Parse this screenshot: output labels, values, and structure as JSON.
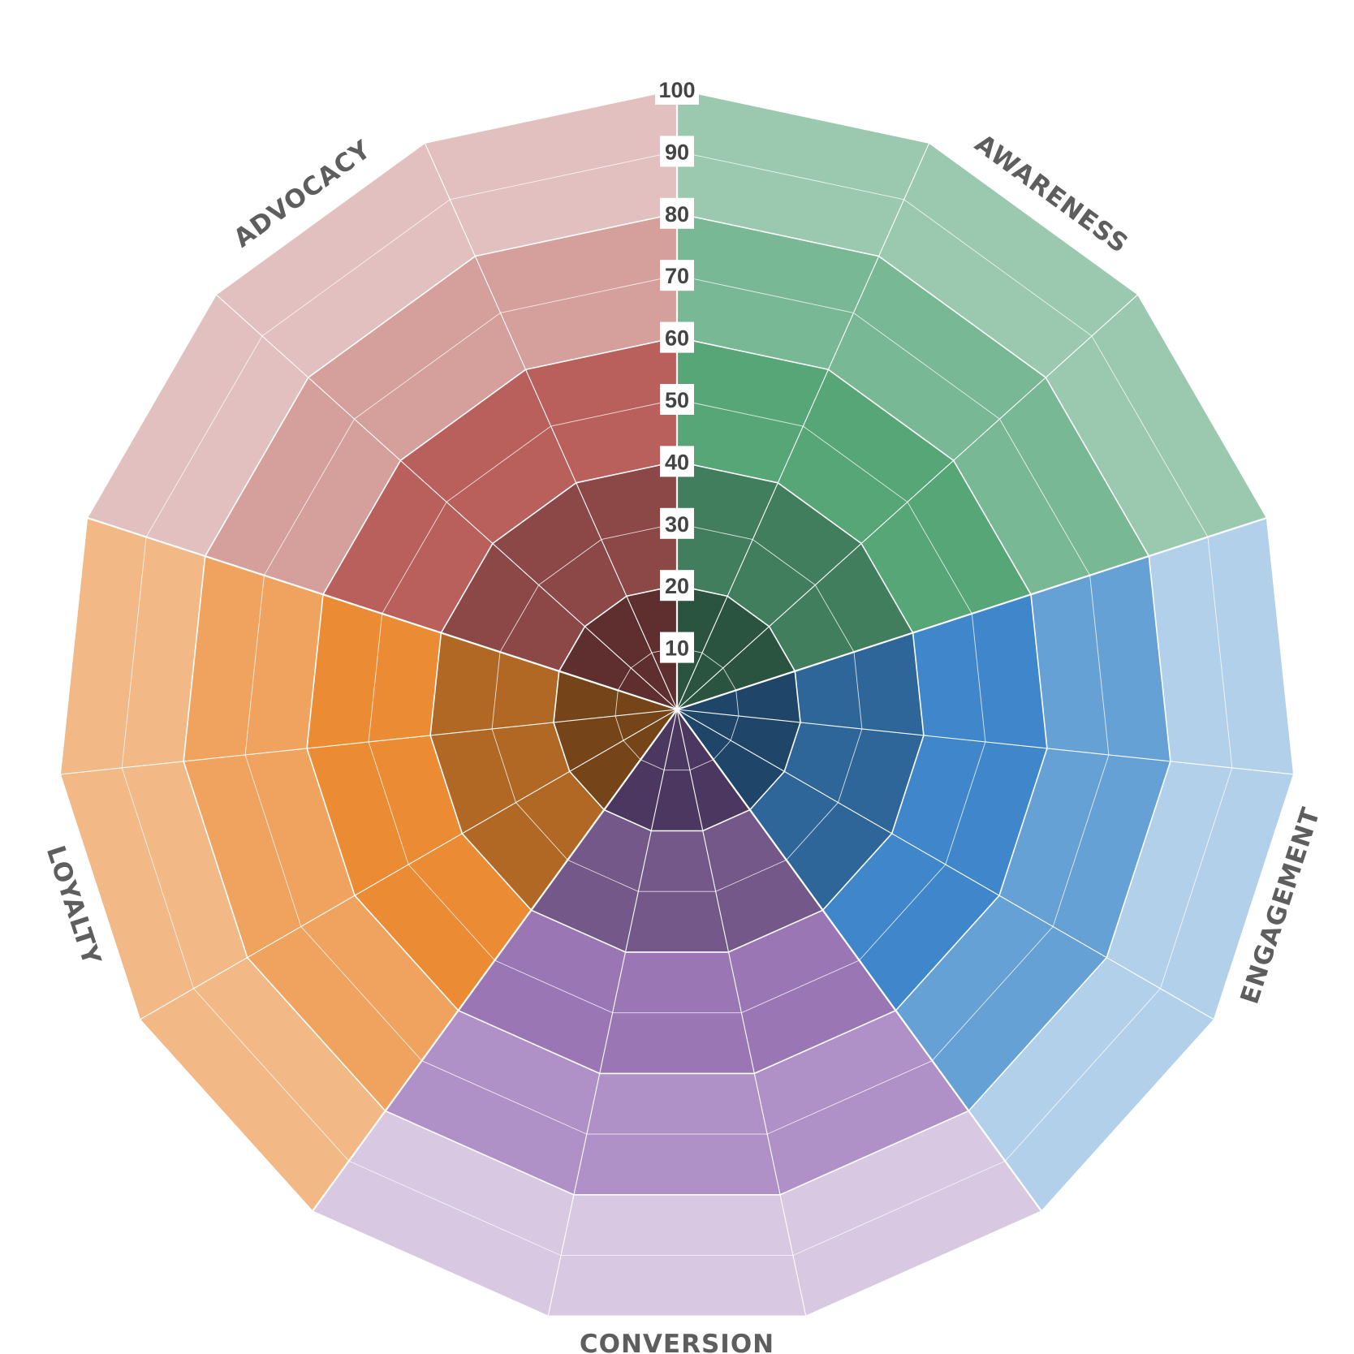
{
  "chart_data": {
    "type": "radar-grid",
    "scale": {
      "min": 0,
      "max": 100,
      "ticks": [
        10,
        20,
        30,
        40,
        50,
        60,
        70,
        80,
        90,
        100
      ]
    },
    "segments": [
      {
        "name": "AWARENESS",
        "colors": [
          "#2b5440",
          "#417e5d",
          "#56a678",
          "#79b895",
          "#9bc9b0"
        ]
      },
      {
        "name": "ENGAGEMENT",
        "colors": [
          "#1f4669",
          "#2e6699",
          "#3f87ca",
          "#66a1d6",
          "#b3d0eb"
        ]
      },
      {
        "name": "CONVERSION",
        "colors": [
          "#4b3760",
          "#735889",
          "#9b76b5",
          "#b091c7",
          "#d8c8e2"
        ]
      },
      {
        "name": "LOYALTY",
        "colors": [
          "#754519",
          "#b06824",
          "#eb8b34",
          "#efa35f",
          "#f2b886"
        ]
      },
      {
        "name": "ADVOCACY",
        "colors": [
          "#5e2f2e",
          "#8b4846",
          "#b9605c",
          "#d59f9b",
          "#e2c0bf"
        ]
      }
    ]
  }
}
